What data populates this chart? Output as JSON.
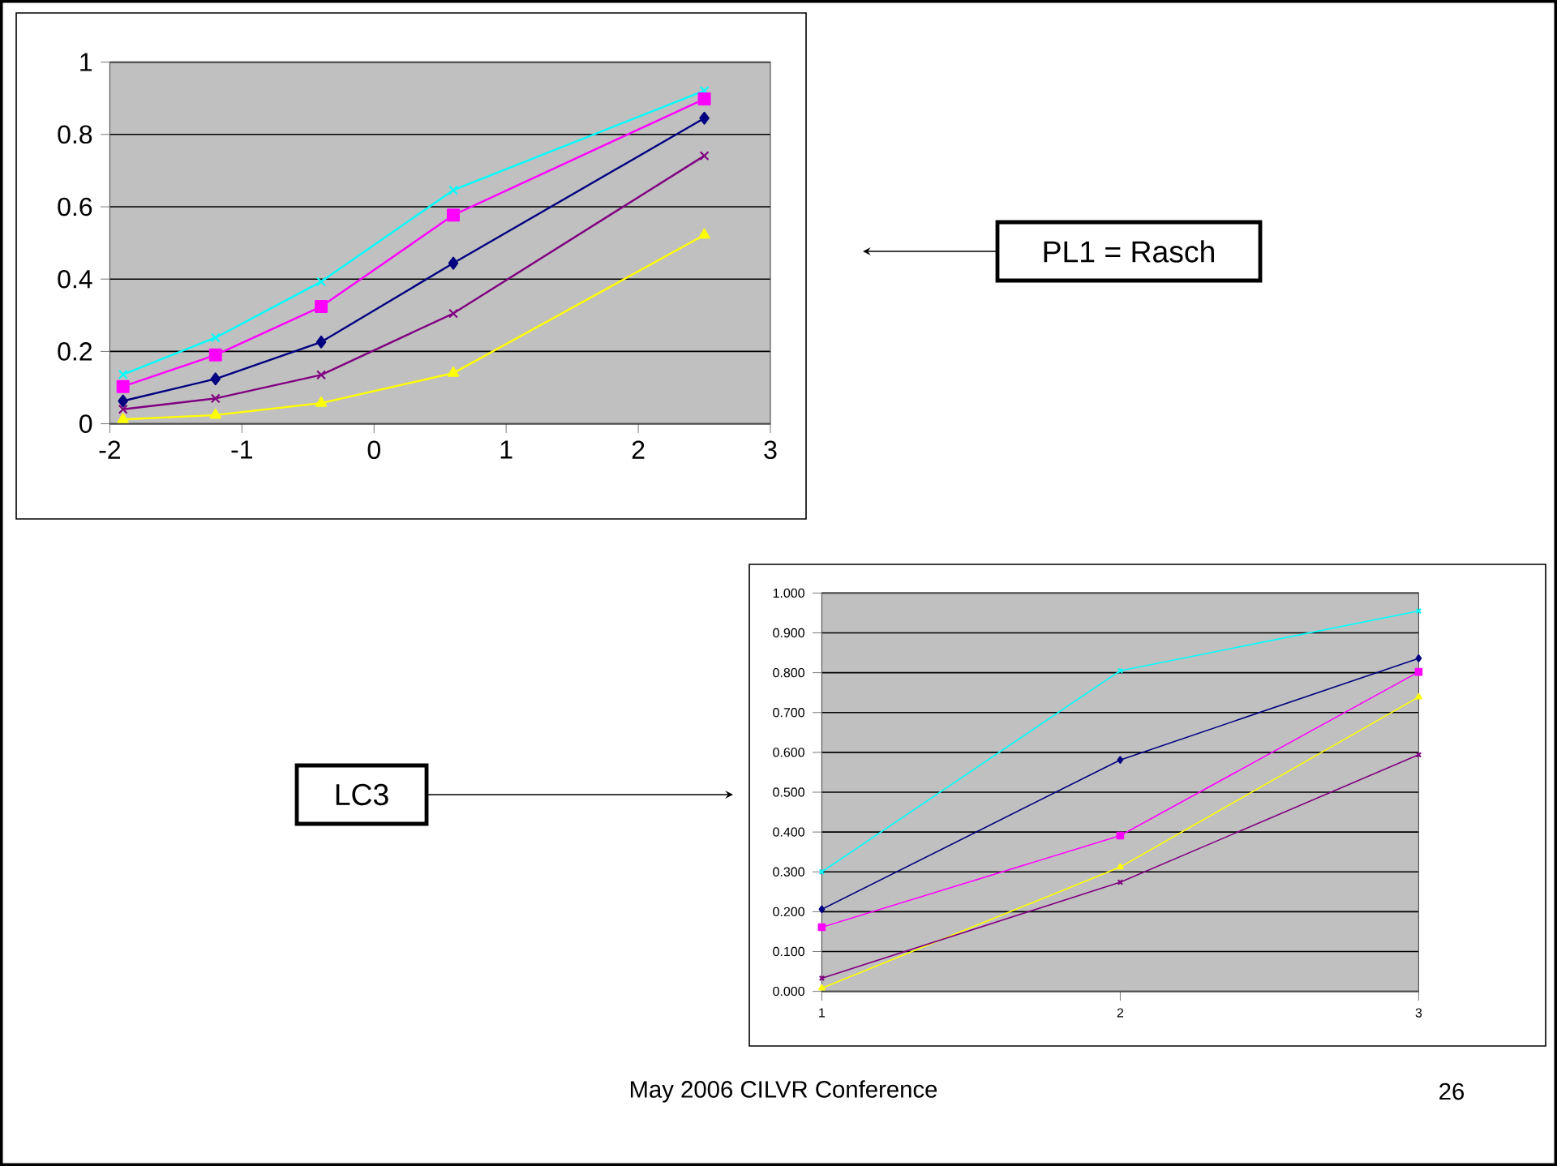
{
  "chart_data": [
    {
      "type": "line",
      "x": [
        -1.9,
        -1.2,
        -0.4,
        0.6,
        2.5
      ],
      "xlim": [
        -2,
        3
      ],
      "xticks": [
        -2,
        -1,
        0,
        1,
        2,
        3
      ],
      "ylim": [
        0,
        1
      ],
      "yticks": [
        0,
        0.2,
        0.4,
        0.6,
        0.8,
        1
      ],
      "grid": "y",
      "series": [
        {
          "color": "#00ffff",
          "marker": "cross",
          "values": [
            0.136,
            0.238,
            0.393,
            0.646,
            0.921
          ]
        },
        {
          "color": "#ff00ff",
          "marker": "square",
          "values": [
            0.103,
            0.19,
            0.324,
            0.577,
            0.898
          ]
        },
        {
          "color": "#000080",
          "marker": "diamond",
          "values": [
            0.063,
            0.124,
            0.226,
            0.444,
            0.845
          ]
        },
        {
          "color": "#800080",
          "marker": "cross",
          "values": [
            0.04,
            0.07,
            0.135,
            0.305,
            0.741
          ]
        },
        {
          "color": "#ffff00",
          "marker": "triangle",
          "values": [
            0.012,
            0.024,
            0.057,
            0.14,
            0.522
          ]
        }
      ],
      "annotations": [
        "PL1 = Rasch"
      ]
    },
    {
      "type": "line",
      "categories": [
        "1",
        "2",
        "3"
      ],
      "ylim": [
        0,
        1
      ],
      "yticks": [
        {
          "value": 0,
          "label": "0.000"
        },
        {
          "value": 0.1,
          "label": "0.100"
        },
        {
          "value": 0.2,
          "label": "0.200"
        },
        {
          "value": 0.3,
          "label": "0.300"
        },
        {
          "value": 0.4,
          "label": "0.400"
        },
        {
          "value": 0.5,
          "label": "0.500"
        },
        {
          "value": 0.6,
          "label": "0.600"
        },
        {
          "value": 0.7,
          "label": "0.700"
        },
        {
          "value": 0.8,
          "label": "0.800"
        },
        {
          "value": 0.9,
          "label": "0.900"
        },
        {
          "value": 1,
          "label": "1.000"
        }
      ],
      "grid": "y",
      "series": [
        {
          "color": "#00ffff",
          "marker": "cross",
          "values": [
            0.3,
            0.805,
            0.955
          ]
        },
        {
          "color": "#000080",
          "marker": "diamond",
          "values": [
            0.206,
            0.581,
            0.836
          ]
        },
        {
          "color": "#ff00ff",
          "marker": "square",
          "values": [
            0.161,
            0.391,
            0.802
          ]
        },
        {
          "color": "#ffff00",
          "marker": "triangle",
          "values": [
            0.008,
            0.312,
            0.739
          ]
        },
        {
          "color": "#800080",
          "marker": "cross",
          "values": [
            0.033,
            0.274,
            0.594
          ]
        }
      ],
      "annotations": [
        "LC3",
        "May 2006 CILVR Conference",
        "26"
      ]
    }
  ]
}
